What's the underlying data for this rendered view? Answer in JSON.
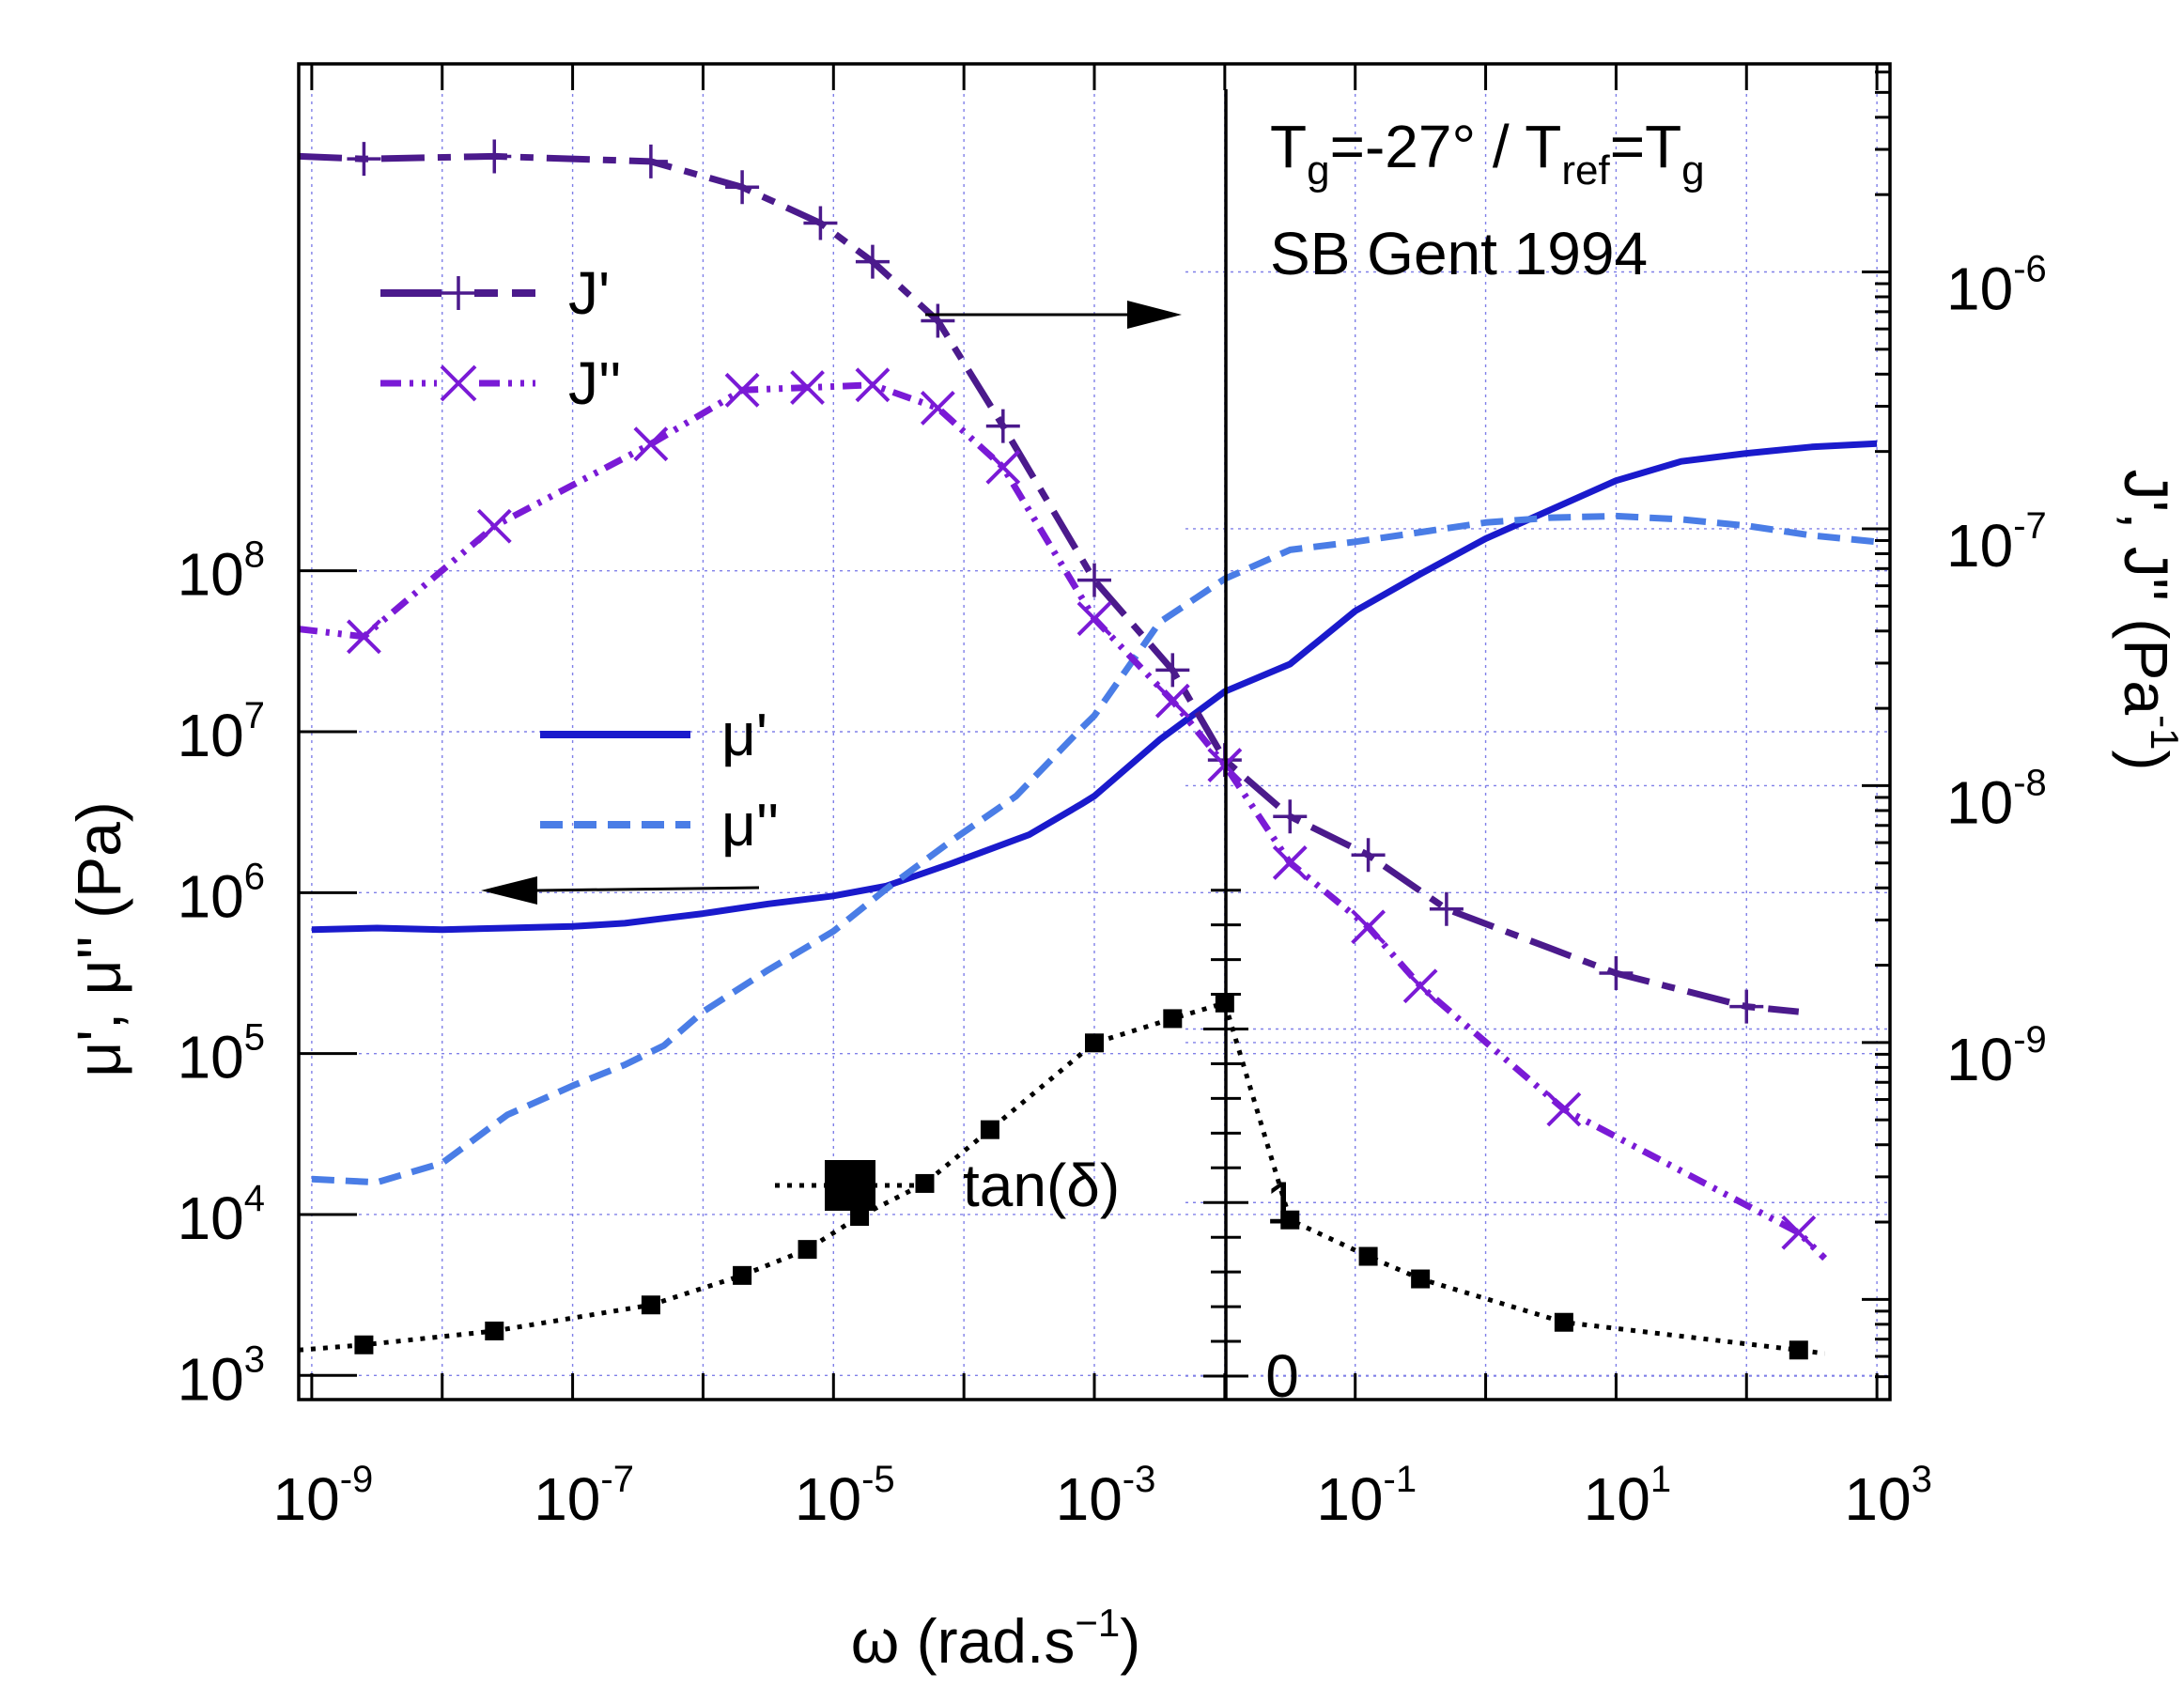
{
  "chart_data": {
    "type": "line",
    "x_axis": {
      "label": "ω (rad.s",
      "label_sup": "−1",
      "label_close": ")",
      "scale": "log",
      "range": [
        -9.1,
        3.1
      ],
      "ticks": [
        {
          "exp": -9,
          "base": "10",
          "sup": "-9"
        },
        {
          "exp": -7,
          "base": "10",
          "sup": "-7"
        },
        {
          "exp": -5,
          "base": "10",
          "sup": "-5"
        },
        {
          "exp": -3,
          "base": "10",
          "sup": "-3"
        },
        {
          "exp": -1,
          "base": "10",
          "sup": "-1"
        },
        {
          "exp": 1,
          "base": "10",
          "sup": "1"
        },
        {
          "exp": 3,
          "base": "10",
          "sup": "3"
        }
      ]
    },
    "y_left": {
      "label": "μ', μ'' (Pa)",
      "scale": "log",
      "range": [
        2.85,
        11.15
      ],
      "ticks": [
        {
          "exp": 3,
          "base": "10",
          "sup": "3"
        },
        {
          "exp": 4,
          "base": "10",
          "sup": "4"
        },
        {
          "exp": 5,
          "base": "10",
          "sup": "5"
        },
        {
          "exp": 6,
          "base": "10",
          "sup": "6"
        },
        {
          "exp": 7,
          "base": "10",
          "sup": "7"
        },
        {
          "exp": 8,
          "base": "10",
          "sup": "8"
        }
      ]
    },
    "y_right": {
      "label": "J', J'' (Pa",
      "label_sup": "-1",
      "label_close": ")",
      "scale": "log",
      "range": [
        -10.39,
        -5.19
      ],
      "ticks": [
        {
          "exp": -9,
          "base": "10",
          "sup": "-9"
        },
        {
          "exp": -8,
          "base": "10",
          "sup": "-8"
        },
        {
          "exp": -7,
          "base": "10",
          "sup": "-7"
        },
        {
          "exp": -6,
          "base": "10",
          "sup": "-6"
        }
      ]
    },
    "y_tan": {
      "scale": "linear",
      "range": [
        0,
        2.95
      ],
      "ticks": [
        {
          "value": 0,
          "label": "0"
        },
        {
          "value": 1,
          "label": "1"
        }
      ]
    },
    "annotation": {
      "line1": {
        "base": "T",
        "sub1": "g",
        "mid": "=-27° / T",
        "sub2": "ref",
        "eq": "=T",
        "sub3": "g"
      },
      "line2": "SB Gent 1994"
    },
    "legend": {
      "J_prime": "J'",
      "J_double": "J''",
      "mu_prime": "μ'",
      "mu_double": "μ''",
      "tan_delta": "tan(δ)"
    },
    "series": [
      {
        "name": "μ'",
        "axis": "left",
        "color": "#1a1acc",
        "style": "solid",
        "marker": "none",
        "x": [
          -9,
          -8.5,
          -8,
          -7.5,
          -7,
          -6.6,
          -6.3,
          -6,
          -5.5,
          -5,
          -4.6,
          -4.1,
          -3.5,
          -3.1,
          -3,
          -2.5,
          -2,
          -1.5,
          -1,
          -0.5,
          0,
          0.5,
          1,
          1.5,
          2,
          2.5,
          3
        ],
        "y": [
          5.77,
          5.78,
          5.77,
          5.78,
          5.79,
          5.81,
          5.84,
          5.87,
          5.93,
          5.98,
          6.04,
          6.18,
          6.36,
          6.55,
          6.6,
          6.95,
          7.25,
          7.42,
          7.75,
          7.98,
          8.2,
          8.38,
          8.56,
          8.68,
          8.73,
          8.77,
          8.79
        ]
      },
      {
        "name": "μ''",
        "axis": "left",
        "color": "#4a7de6",
        "style": "dashed",
        "marker": "none",
        "x": [
          -9,
          -8.5,
          -8,
          -7.5,
          -7,
          -6.6,
          -6.3,
          -6,
          -5.5,
          -5,
          -4.6,
          -4.1,
          -3.6,
          -3.1,
          -3,
          -2.5,
          -2,
          -1.5,
          -1,
          -0.5,
          0,
          0.5,
          1,
          1.5,
          2,
          2.5,
          3
        ],
        "y": [
          4.22,
          4.2,
          4.32,
          4.62,
          4.8,
          4.93,
          5.05,
          5.26,
          5.52,
          5.76,
          6.02,
          6.32,
          6.6,
          7.02,
          7.1,
          7.68,
          7.95,
          8.13,
          8.18,
          8.24,
          8.3,
          8.33,
          8.34,
          8.32,
          8.28,
          8.22,
          8.18
        ]
      },
      {
        "name": "J'",
        "axis": "right",
        "color": "#4b1a8c",
        "style": "dashdot",
        "marker": "+",
        "x": [
          -9.1,
          -8.6,
          -7.6,
          -6.4,
          -5.7,
          -5.1,
          -4.7,
          -4.2,
          -3.7,
          -3.0,
          -2.4,
          -2.0,
          -1.5,
          -0.9,
          -0.3,
          1.0,
          2.0,
          2.4
        ],
        "y": [
          -5.55,
          -5.56,
          -5.55,
          -5.57,
          -5.67,
          -5.81,
          -5.96,
          -6.19,
          -6.6,
          -7.2,
          -7.55,
          -7.9,
          -8.12,
          -8.27,
          -8.48,
          -8.73,
          -8.86,
          -8.88
        ],
        "marker_indices": [
          1,
          2,
          3,
          4,
          5,
          6,
          7,
          8,
          9,
          10,
          11,
          12,
          13,
          14,
          15,
          16
        ]
      },
      {
        "name": "J''",
        "axis": "right",
        "color": "#7a1ad6",
        "style": "dashdotdot",
        "marker": "x",
        "x": [
          -9.1,
          -8.6,
          -7.6,
          -6.4,
          -5.7,
          -5.2,
          -4.7,
          -4.2,
          -3.7,
          -3.0,
          -2.4,
          -2.0,
          -1.5,
          -0.9,
          -0.5,
          0.6,
          2.4,
          2.6
        ],
        "y": [
          -7.39,
          -7.42,
          -6.99,
          -6.67,
          -6.46,
          -6.45,
          -6.44,
          -6.53,
          -6.76,
          -7.35,
          -7.67,
          -7.92,
          -8.3,
          -8.55,
          -8.78,
          -9.26,
          -9.74,
          -9.84
        ],
        "marker_indices": [
          1,
          2,
          3,
          4,
          5,
          6,
          7,
          8,
          9,
          10,
          11,
          12,
          13,
          14,
          15,
          16
        ]
      },
      {
        "name": "tan(δ)",
        "axis": "tan",
        "color": "#000000",
        "style": "dotted",
        "marker": "square",
        "x": [
          -9.1,
          -8.6,
          -7.6,
          -6.4,
          -5.7,
          -5.2,
          -4.8,
          -4.3,
          -3.8,
          -3.0,
          -2.4,
          -2.0,
          -1.5,
          -0.9,
          -0.5,
          0.6,
          2.4,
          2.6
        ],
        "y": [
          0.15,
          0.18,
          0.26,
          0.41,
          0.58,
          0.73,
          0.92,
          1.11,
          1.42,
          1.92,
          2.06,
          2.15,
          0.9,
          0.69,
          0.56,
          0.31,
          0.15,
          0.13
        ],
        "marker_indices": [
          1,
          2,
          3,
          4,
          5,
          6,
          7,
          8,
          9,
          10,
          11,
          12,
          13,
          14,
          15,
          16
        ]
      }
    ]
  }
}
